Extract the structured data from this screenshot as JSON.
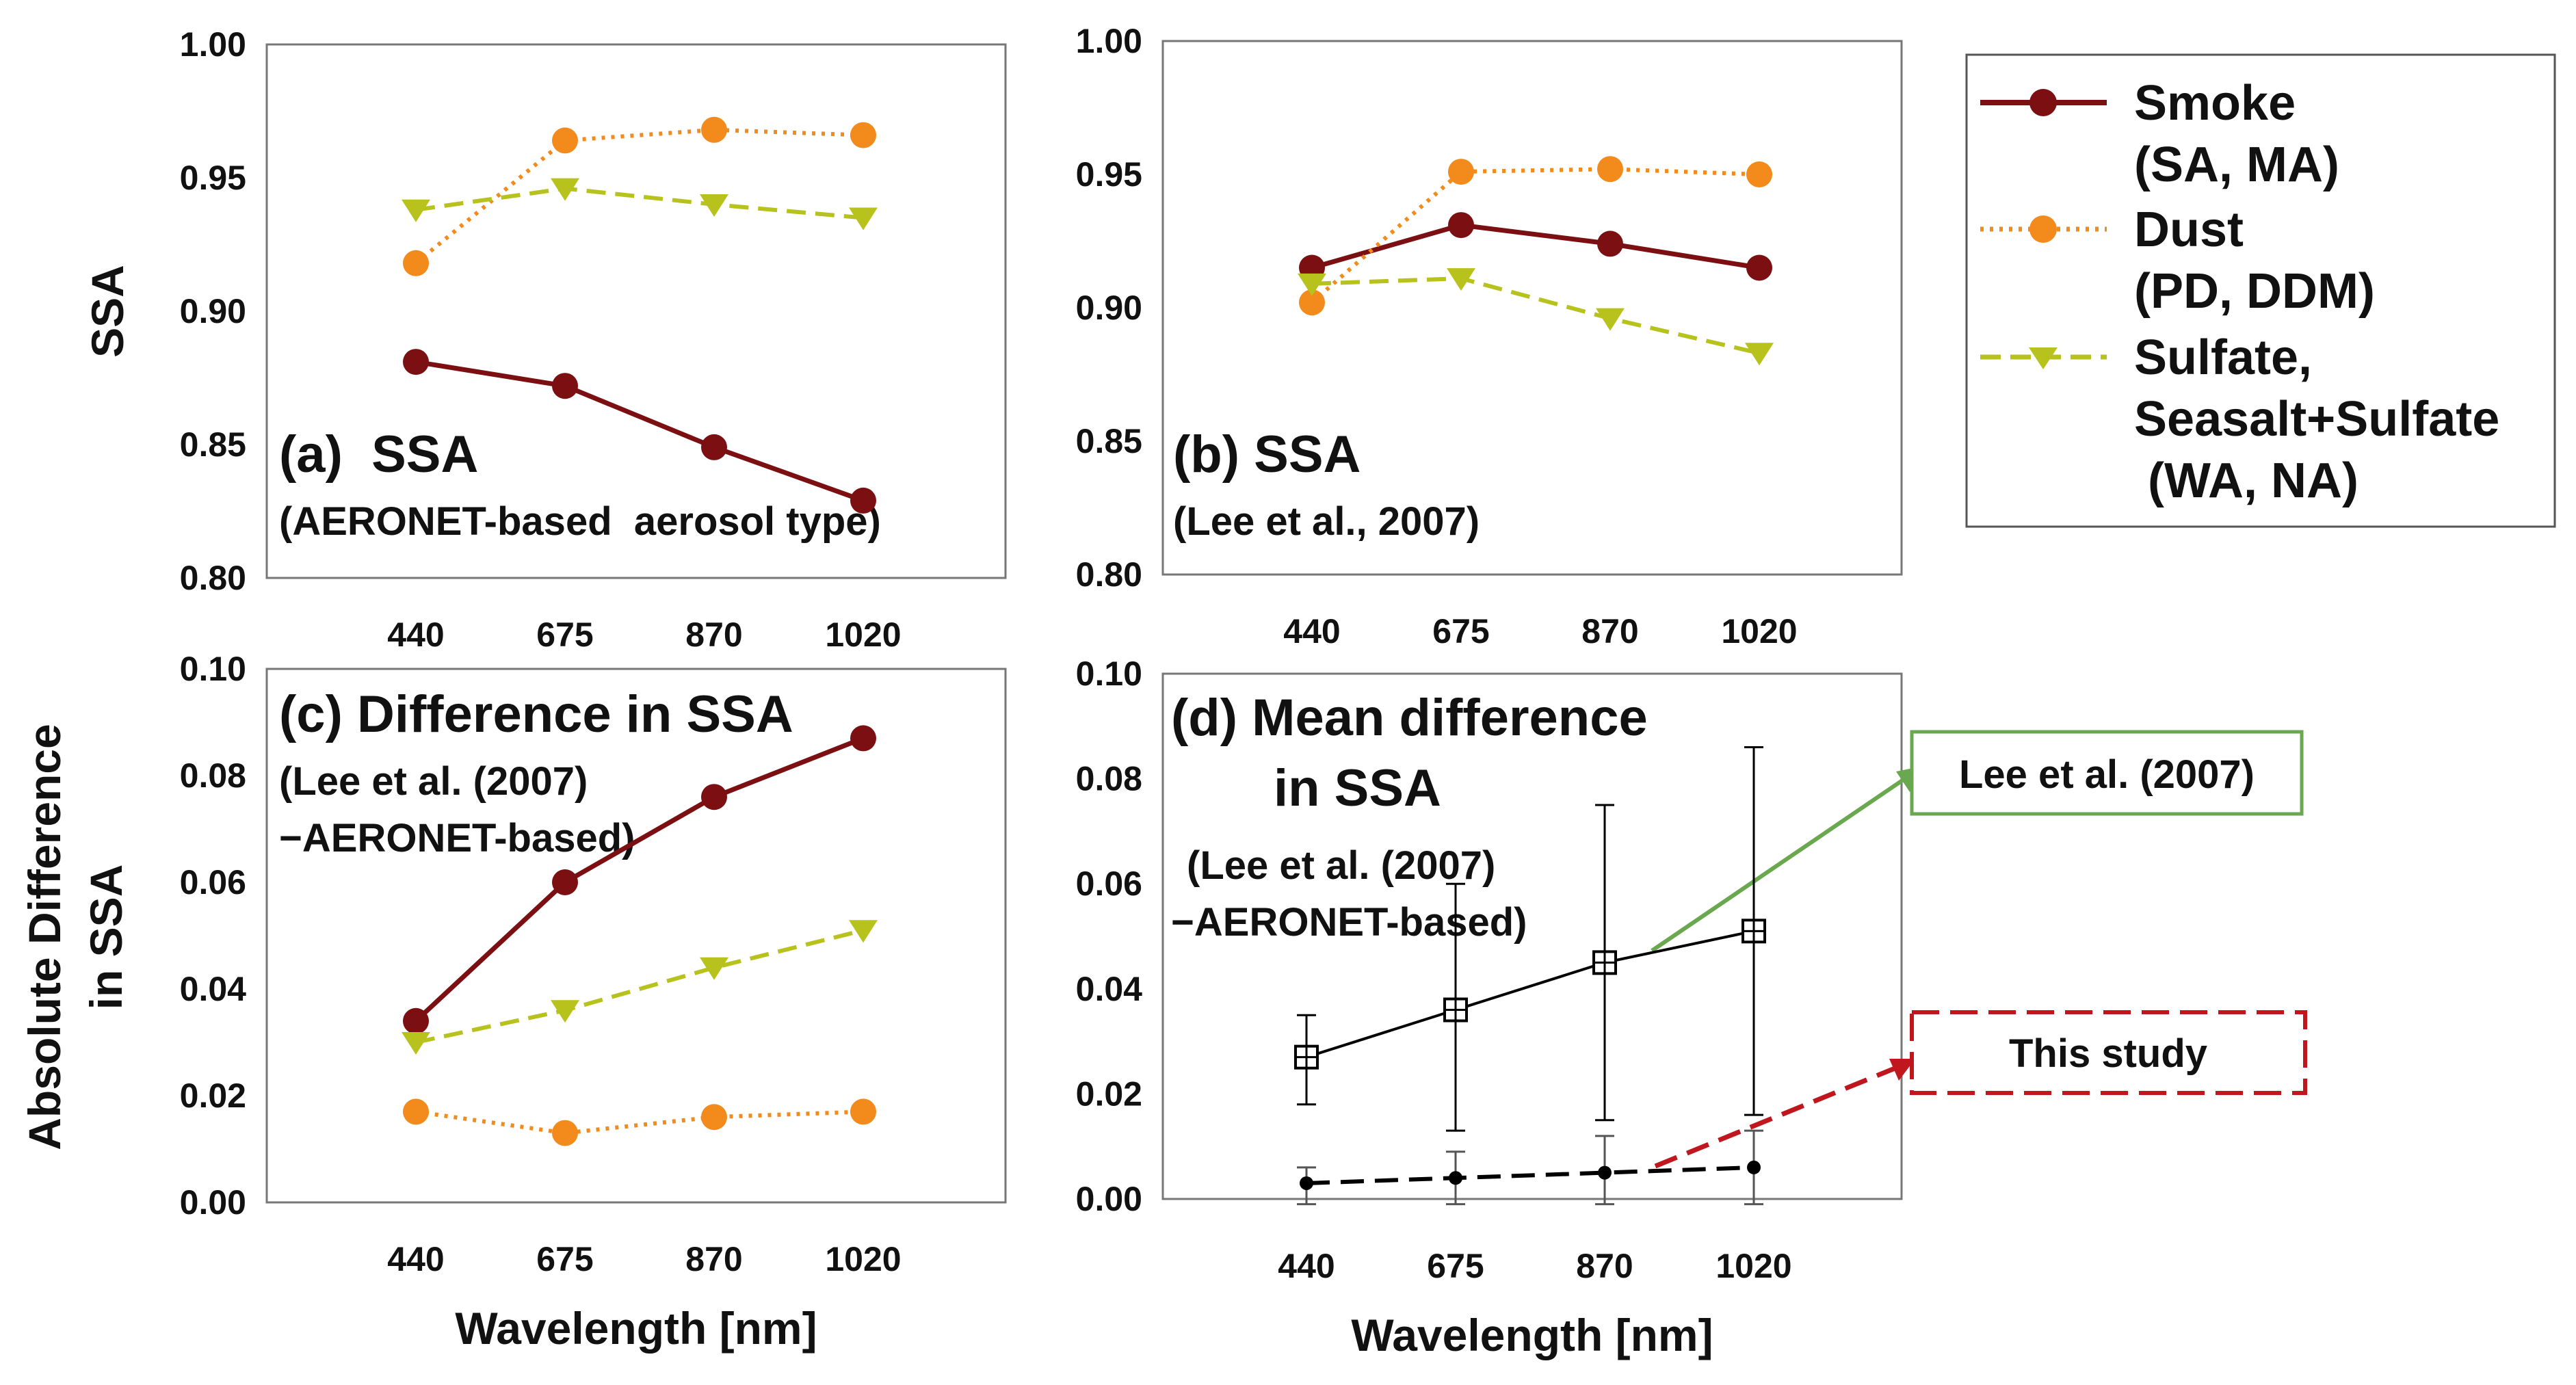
{
  "colors": {
    "smoke": "#7b0f12",
    "dust": "#f28a1c",
    "sulfate": "#b7c21c",
    "lee_callout": "#6aa84f",
    "this_study_callout": "#c0161d",
    "black": "#000000"
  },
  "x_labels": [
    "440",
    "675",
    "870",
    "1020"
  ],
  "x_axis_title": "Wavelength [nm]",
  "y_axis_title_top": "SSA",
  "y_axis_title_bottom_line1": "Absolute Difference",
  "y_axis_title_bottom_line2": "in SSA",
  "legend": {
    "smoke_line1": "Smoke",
    "smoke_line2": "(SA, MA)",
    "dust_line1": "Dust",
    "dust_line2": "(PD, DDM)",
    "sulfate_line1": "Sulfate,",
    "sulfate_line2": "Seasalt+Sulfate",
    "sulfate_line3": " (WA, NA)"
  },
  "chart_data": [
    {
      "id": "a",
      "type": "line",
      "title": "(a)  SSA",
      "subtitle": "(AERONET-based  aerosol type)",
      "xlabel": "",
      "ylabel": "SSA",
      "categories": [
        "440",
        "675",
        "870",
        "1020"
      ],
      "ylim": [
        0.8,
        1.0
      ],
      "yticks": [
        "0.80",
        "0.85",
        "0.90",
        "0.95",
        "1.00"
      ],
      "series": [
        {
          "name": "Smoke (SA, MA)",
          "key": "smoke",
          "values": [
            0.881,
            0.872,
            0.849,
            0.829
          ]
        },
        {
          "name": "Dust (PD, DDM)",
          "key": "dust",
          "values": [
            0.918,
            0.964,
            0.968,
            0.966
          ]
        },
        {
          "name": "Sulfate, Seasalt+Sulfate (WA, NA)",
          "key": "sulfate",
          "values": [
            0.938,
            0.946,
            0.94,
            0.935
          ]
        }
      ]
    },
    {
      "id": "b",
      "type": "line",
      "title": "(b) SSA",
      "subtitle": "(Lee et al., 2007)",
      "xlabel": "",
      "ylabel": "",
      "categories": [
        "440",
        "675",
        "870",
        "1020"
      ],
      "ylim": [
        0.8,
        1.0
      ],
      "yticks": [
        "0.80",
        "0.85",
        "0.90",
        "0.95",
        "1.00"
      ],
      "series": [
        {
          "name": "Smoke (SA, MA)",
          "key": "smoke",
          "values": [
            0.915,
            0.931,
            0.924,
            0.915
          ]
        },
        {
          "name": "Dust (PD, DDM)",
          "key": "dust",
          "values": [
            0.902,
            0.951,
            0.952,
            0.95
          ]
        },
        {
          "name": "Sulfate, Seasalt+Sulfate (WA, NA)",
          "key": "sulfate",
          "values": [
            0.909,
            0.911,
            0.896,
            0.883
          ]
        }
      ]
    },
    {
      "id": "c",
      "type": "line",
      "title": "(c) Difference in SSA",
      "subtitle_line1": "(Lee et al. (2007)",
      "subtitle_line2": "−AERONET-based)",
      "xlabel": "Wavelength [nm]",
      "ylabel": "Absolute Difference in SSA",
      "categories": [
        "440",
        "675",
        "870",
        "1020"
      ],
      "ylim": [
        0.0,
        0.1
      ],
      "yticks": [
        "0.00",
        "0.02",
        "0.04",
        "0.06",
        "0.08",
        "0.10"
      ],
      "series": [
        {
          "name": "Smoke (SA, MA)",
          "key": "smoke",
          "values": [
            0.034,
            0.06,
            0.076,
            0.087
          ]
        },
        {
          "name": "Dust (PD, DDM)",
          "key": "dust",
          "values": [
            0.017,
            0.013,
            0.016,
            0.017
          ]
        },
        {
          "name": "Sulfate, Seasalt+Sulfate (WA, NA)",
          "key": "sulfate",
          "values": [
            0.03,
            0.036,
            0.044,
            0.051
          ]
        }
      ]
    },
    {
      "id": "d",
      "type": "line",
      "title_line1": "(d) Mean difference",
      "title_line2": "in SSA",
      "subtitle_line1": "(Lee et al. (2007)",
      "subtitle_line2": "−AERONET-based)",
      "xlabel": "Wavelength [nm]",
      "ylabel": "",
      "categories": [
        "440",
        "675",
        "870",
        "1020"
      ],
      "ylim": [
        0.0,
        0.1
      ],
      "yticks": [
        "0.00",
        "0.02",
        "0.04",
        "0.06",
        "0.08",
        "0.10"
      ],
      "series": [
        {
          "name": "Lee et al. (2007)",
          "key": "lee",
          "values": [
            0.027,
            0.036,
            0.045,
            0.051
          ],
          "err_low": [
            0.018,
            0.013,
            0.015,
            0.016
          ],
          "err_high": [
            0.035,
            0.06,
            0.075,
            0.086
          ]
        },
        {
          "name": "This study",
          "key": "this",
          "values": [
            0.003,
            0.004,
            0.005,
            0.006
          ],
          "err_low": [
            -0.001,
            -0.001,
            -0.001,
            -0.001
          ],
          "err_high": [
            0.006,
            0.009,
            0.012,
            0.013
          ]
        }
      ],
      "annotations": [
        "Lee et al. (2007)",
        "This study"
      ]
    }
  ]
}
